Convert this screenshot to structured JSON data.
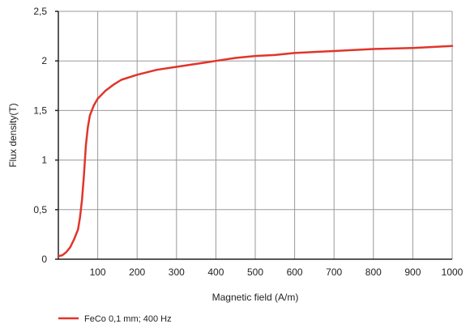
{
  "chart_data": {
    "type": "line",
    "xlabel": "Magnetic field (A/m)",
    "ylabel": "Flux density(T)",
    "xlim": [
      0,
      1000
    ],
    "ylim": [
      0,
      2.5
    ],
    "x_ticks": [
      "100",
      "200",
      "300",
      "400",
      "500",
      "600",
      "700",
      "800",
      "900",
      "1000"
    ],
    "y_ticks": [
      "0",
      "0,5",
      "1",
      "1,5",
      "2",
      "2,5"
    ],
    "grid": true,
    "legend_position": "bottom-left",
    "series": [
      {
        "name": "FeCo 0,1 mm; 400 Hz",
        "color": "#e0352b",
        "x": [
          0,
          10,
          20,
          30,
          40,
          50,
          55,
          60,
          65,
          70,
          75,
          80,
          90,
          100,
          120,
          140,
          160,
          200,
          250,
          300,
          350,
          400,
          450,
          500,
          550,
          600,
          700,
          800,
          900,
          1000
        ],
        "y": [
          0.03,
          0.04,
          0.07,
          0.12,
          0.2,
          0.3,
          0.42,
          0.6,
          0.85,
          1.15,
          1.33,
          1.45,
          1.55,
          1.62,
          1.7,
          1.76,
          1.81,
          1.86,
          1.91,
          1.94,
          1.97,
          2.0,
          2.03,
          2.05,
          2.06,
          2.08,
          2.1,
          2.12,
          2.13,
          2.15
        ]
      }
    ]
  }
}
